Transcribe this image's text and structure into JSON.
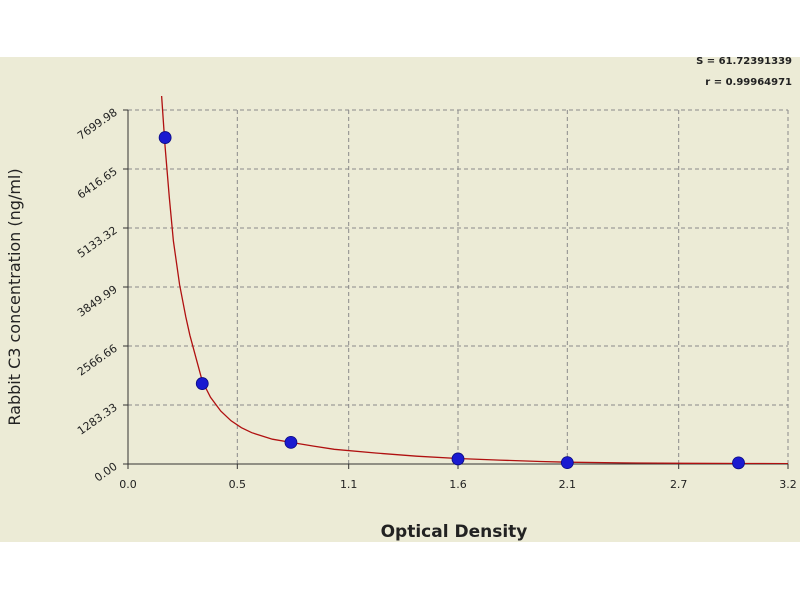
{
  "chart_data": {
    "type": "scatter",
    "title": "",
    "xlabel": "Optical Density",
    "ylabel": "Rabbit C3 concentration (ng/ml)",
    "xlim": [
      0,
      3.2
    ],
    "ylim": [
      0,
      7699.98
    ],
    "x_ticks": [
      "0.0",
      "0.5",
      "1.1",
      "1.6",
      "2.1",
      "2.7",
      "3.2"
    ],
    "x_tick_values": [
      0.0,
      0.53,
      1.07,
      1.6,
      2.13,
      2.67,
      3.2
    ],
    "y_ticks": [
      "0.00",
      "1283.33",
      "2566.66",
      "3849.99",
      "5133.32",
      "6416.65",
      "7699.98"
    ],
    "y_tick_values": [
      0.0,
      1283.33,
      2566.66,
      3849.99,
      5133.32,
      6416.65,
      7699.98
    ],
    "grid": true,
    "points": [
      {
        "x": 0.18,
        "y": 7100
      },
      {
        "x": 0.36,
        "y": 1750
      },
      {
        "x": 0.79,
        "y": 470
      },
      {
        "x": 1.6,
        "y": 110
      },
      {
        "x": 2.13,
        "y": 30
      },
      {
        "x": 2.96,
        "y": 25
      }
    ],
    "fit_curve": {
      "x": [
        0.16,
        0.18,
        0.2,
        0.22,
        0.25,
        0.28,
        0.3,
        0.33,
        0.36,
        0.4,
        0.45,
        0.5,
        0.55,
        0.6,
        0.7,
        0.79,
        0.9,
        1.0,
        1.2,
        1.4,
        1.6,
        1.8,
        2.0,
        2.13,
        2.4,
        2.7,
        3.0,
        3.2
      ],
      "y": [
        8200,
        6900,
        5800,
        4850,
        3900,
        3200,
        2800,
        2300,
        1800,
        1450,
        1150,
        940,
        790,
        680,
        540,
        470,
        390,
        320,
        240,
        170,
        120,
        85,
        55,
        40,
        25,
        15,
        10,
        6
      ]
    },
    "stats": {
      "s_label": "S = 61.72391339",
      "r_label": "r = 0.99964971"
    },
    "colors": {
      "background": "#ecebd6",
      "curve": "#b01010",
      "point": "#1a1ad0",
      "grid": "#8a8a8a"
    }
  }
}
